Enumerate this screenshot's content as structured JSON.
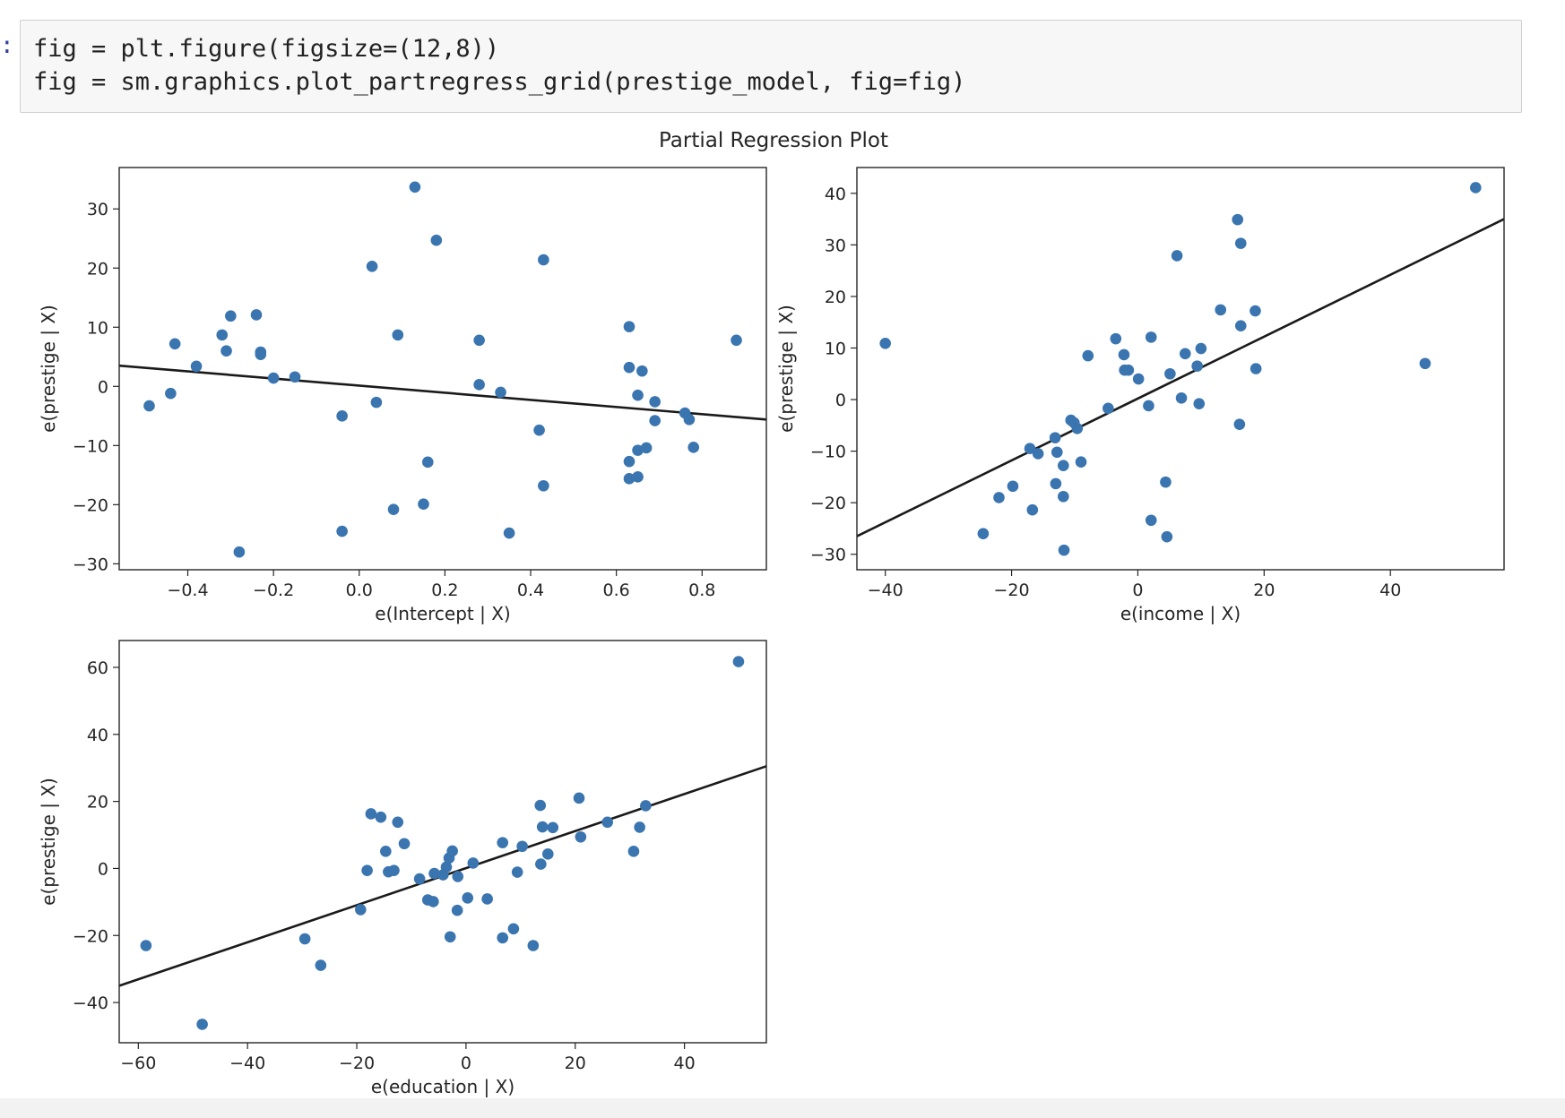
{
  "code_cell": {
    "prompt": ":",
    "lines": [
      "fig = plt.figure(figsize=(12,8))",
      "fig = sm.graphics.plot_partregress_grid(prestige_model, fig=fig)"
    ]
  },
  "colors": {
    "point": "#3a75b0",
    "fit_line": "#1a1a1a",
    "axes": "#262626",
    "code_bg": "#f7f7f7"
  },
  "chart_data": [
    {
      "type": "scatter",
      "title": "Partial Regression Plot",
      "xlabel": "e(Intercept | X)",
      "ylabel": "e(prestige | X)",
      "xlim": [
        -0.56,
        0.95
      ],
      "ylim": [
        -31,
        37
      ],
      "xticks": [
        -0.4,
        -0.2,
        0.0,
        0.2,
        0.4,
        0.6,
        0.8
      ],
      "xtick_labels": [
        "−0.4",
        "−0.2",
        "0.0",
        "0.2",
        "0.4",
        "0.6",
        "0.8"
      ],
      "yticks": [
        -30,
        -20,
        -10,
        0,
        10,
        20,
        30
      ],
      "ytick_labels": [
        "−30",
        "−20",
        "−10",
        "0",
        "10",
        "20",
        "30"
      ],
      "fit_line": [
        [
          -0.56,
          3.5
        ],
        [
          0.95,
          -5.6
        ]
      ],
      "points": [
        [
          -0.49,
          -3.3
        ],
        [
          -0.44,
          -1.2
        ],
        [
          -0.43,
          7.2
        ],
        [
          -0.38,
          3.4
        ],
        [
          -0.32,
          8.7
        ],
        [
          -0.31,
          6.0
        ],
        [
          -0.3,
          11.9
        ],
        [
          -0.28,
          -28.0
        ],
        [
          -0.24,
          12.1
        ],
        [
          -0.23,
          5.8
        ],
        [
          -0.23,
          5.4
        ],
        [
          -0.2,
          1.4
        ],
        [
          -0.15,
          1.6
        ],
        [
          -0.04,
          -24.5
        ],
        [
          -0.04,
          -5.0
        ],
        [
          0.03,
          20.3
        ],
        [
          0.04,
          -2.7
        ],
        [
          0.08,
          -20.8
        ],
        [
          0.09,
          8.7
        ],
        [
          0.13,
          33.7
        ],
        [
          0.15,
          -19.9
        ],
        [
          0.16,
          -12.8
        ],
        [
          0.18,
          24.7
        ],
        [
          0.28,
          0.3
        ],
        [
          0.28,
          7.8
        ],
        [
          0.33,
          -1.0
        ],
        [
          0.35,
          -24.8
        ],
        [
          0.42,
          -7.4
        ],
        [
          0.43,
          -16.8
        ],
        [
          0.43,
          21.4
        ],
        [
          0.63,
          10.1
        ],
        [
          0.63,
          3.2
        ],
        [
          0.63,
          -12.7
        ],
        [
          0.63,
          -15.6
        ],
        [
          0.65,
          -15.3
        ],
        [
          0.65,
          -10.8
        ],
        [
          0.65,
          -1.5
        ],
        [
          0.66,
          2.6
        ],
        [
          0.67,
          -10.4
        ],
        [
          0.69,
          -2.6
        ],
        [
          0.69,
          -5.8
        ],
        [
          0.76,
          -4.5
        ],
        [
          0.77,
          -5.6
        ],
        [
          0.78,
          -10.3
        ],
        [
          0.88,
          7.8
        ]
      ]
    },
    {
      "type": "scatter",
      "xlabel": "e(income | X)",
      "ylabel": "e(prestige | X)",
      "xlim": [
        -44.5,
        58
      ],
      "ylim": [
        -33,
        45
      ],
      "xticks": [
        -40,
        -20,
        0,
        20,
        40
      ],
      "xtick_labels": [
        "−40",
        "−20",
        "0",
        "20",
        "40"
      ],
      "yticks": [
        -30,
        -20,
        -10,
        0,
        10,
        20,
        30,
        40
      ],
      "ytick_labels": [
        "−30",
        "−20",
        "−10",
        "0",
        "10",
        "20",
        "30",
        "40"
      ],
      "fit_line": [
        [
          -44.5,
          -26.5
        ],
        [
          58,
          35.0
        ]
      ],
      "points": [
        [
          -40,
          10.9
        ],
        [
          -24.5,
          -26.0
        ],
        [
          -22,
          -19.0
        ],
        [
          -19.8,
          -16.8
        ],
        [
          -17.1,
          -9.5
        ],
        [
          -16.7,
          -21.4
        ],
        [
          -15.8,
          -10.5
        ],
        [
          -13.1,
          -7.4
        ],
        [
          -13.0,
          -16.3
        ],
        [
          -12.8,
          -10.2
        ],
        [
          -11.8,
          -18.8
        ],
        [
          -11.8,
          -12.8
        ],
        [
          -11.7,
          -29.2
        ],
        [
          -10.6,
          -4.0
        ],
        [
          -10.1,
          -4.5
        ],
        [
          -9.6,
          -5.6
        ],
        [
          -9.0,
          -12.1
        ],
        [
          -7.9,
          8.5
        ],
        [
          -4.7,
          -1.7
        ],
        [
          -3.5,
          11.8
        ],
        [
          -2.2,
          8.7
        ],
        [
          -2.1,
          5.7
        ],
        [
          -1.5,
          5.7
        ],
        [
          0.1,
          4.0
        ],
        [
          1.7,
          -1.2
        ],
        [
          2.1,
          -23.4
        ],
        [
          2.1,
          12.1
        ],
        [
          4.4,
          -16.0
        ],
        [
          4.6,
          -26.6
        ],
        [
          5.1,
          5.0
        ],
        [
          6.2,
          27.9
        ],
        [
          6.9,
          0.3
        ],
        [
          7.5,
          8.9
        ],
        [
          9.4,
          6.5
        ],
        [
          9.7,
          -0.8
        ],
        [
          10.0,
          9.9
        ],
        [
          13.1,
          17.4
        ],
        [
          15.8,
          34.9
        ],
        [
          16.1,
          -4.8
        ],
        [
          16.3,
          14.3
        ],
        [
          16.3,
          30.3
        ],
        [
          18.6,
          17.2
        ],
        [
          18.7,
          6.0
        ],
        [
          45.5,
          7.0
        ],
        [
          53.5,
          41.1
        ]
      ]
    },
    {
      "type": "scatter",
      "xlabel": "e(education | X)",
      "ylabel": "e(prestige | X)",
      "xlim": [
        -63.5,
        55
      ],
      "ylim": [
        -52,
        68
      ],
      "xticks": [
        -60,
        -40,
        -20,
        0,
        20,
        40
      ],
      "xtick_labels": [
        "−60",
        "−40",
        "−20",
        "0",
        "20",
        "40"
      ],
      "yticks": [
        -40,
        -20,
        0,
        20,
        40,
        60
      ],
      "ytick_labels": [
        "−40",
        "−20",
        "0",
        "20",
        "40",
        "60"
      ],
      "fit_line": [
        [
          -63.5,
          -35.0
        ],
        [
          55,
          30.5
        ]
      ],
      "points": [
        [
          -58.6,
          -23.0
        ],
        [
          -48.3,
          -46.5
        ],
        [
          -29.5,
          -21.0
        ],
        [
          -26.6,
          -28.9
        ],
        [
          -19.3,
          -12.3
        ],
        [
          -18.1,
          -0.6
        ],
        [
          -17.4,
          16.3
        ],
        [
          -15.6,
          15.3
        ],
        [
          -14.7,
          5.1
        ],
        [
          -14.2,
          -1.0
        ],
        [
          -13.2,
          -0.6
        ],
        [
          -12.5,
          13.8
        ],
        [
          -11.3,
          7.4
        ],
        [
          -8.5,
          -3.1
        ],
        [
          -7.0,
          -9.4
        ],
        [
          -6.0,
          -9.9
        ],
        [
          -5.8,
          -1.5
        ],
        [
          -4.2,
          -1.9
        ],
        [
          -3.6,
          0.4
        ],
        [
          -3.1,
          3.1
        ],
        [
          -2.9,
          -20.4
        ],
        [
          -2.5,
          5.2
        ],
        [
          -1.6,
          -12.5
        ],
        [
          -1.5,
          -2.4
        ],
        [
          0.3,
          -8.8
        ],
        [
          1.3,
          1.6
        ],
        [
          3.9,
          -9.1
        ],
        [
          6.7,
          -20.7
        ],
        [
          6.7,
          7.7
        ],
        [
          8.7,
          -18.0
        ],
        [
          9.4,
          -1.1
        ],
        [
          10.3,
          6.6
        ],
        [
          12.3,
          -23.0
        ],
        [
          13.6,
          18.8
        ],
        [
          13.7,
          1.3
        ],
        [
          14.0,
          12.4
        ],
        [
          15.0,
          4.3
        ],
        [
          15.9,
          12.2
        ],
        [
          20.7,
          21.0
        ],
        [
          21.0,
          9.4
        ],
        [
          25.9,
          13.8
        ],
        [
          30.7,
          5.1
        ],
        [
          31.8,
          12.3
        ],
        [
          32.9,
          18.7
        ],
        [
          49.9,
          61.7
        ]
      ]
    }
  ]
}
